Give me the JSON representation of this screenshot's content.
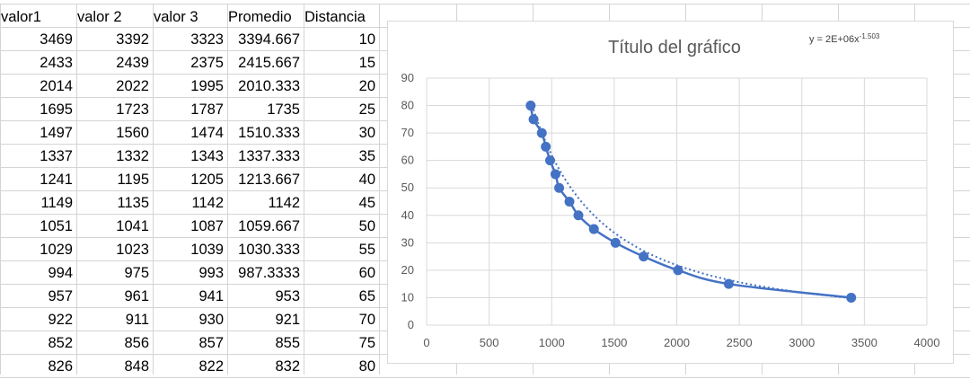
{
  "sheet": {
    "headers": [
      "valor1",
      "valor 2",
      "valor 3",
      "Promedio",
      "Distancia"
    ],
    "rows": [
      [
        "3469",
        "3392",
        "3323",
        "3394.667",
        "10"
      ],
      [
        "2433",
        "2439",
        "2375",
        "2415.667",
        "15"
      ],
      [
        "2014",
        "2022",
        "1995",
        "2010.333",
        "20"
      ],
      [
        "1695",
        "1723",
        "1787",
        "1735",
        "25"
      ],
      [
        "1497",
        "1560",
        "1474",
        "1510.333",
        "30"
      ],
      [
        "1337",
        "1332",
        "1343",
        "1337.333",
        "35"
      ],
      [
        "1241",
        "1195",
        "1205",
        "1213.667",
        "40"
      ],
      [
        "1149",
        "1135",
        "1142",
        "1142",
        "45"
      ],
      [
        "1051",
        "1041",
        "1087",
        "1059.667",
        "50"
      ],
      [
        "1029",
        "1023",
        "1039",
        "1030.333",
        "55"
      ],
      [
        "994",
        "975",
        "993",
        "987.3333",
        "60"
      ],
      [
        "957",
        "961",
        "941",
        "953",
        "65"
      ],
      [
        "922",
        "911",
        "930",
        "921",
        "70"
      ],
      [
        "852",
        "856",
        "857",
        "855",
        "75"
      ],
      [
        "826",
        "848",
        "822",
        "832",
        "80"
      ]
    ]
  },
  "chart_data": {
    "type": "scatter",
    "title": "Título del gráfico",
    "trendline_equation_base": "y = 2E+06x",
    "trendline_equation_exponent": "-1.503",
    "x": [
      3394.667,
      2415.667,
      2010.333,
      1735,
      1510.333,
      1337.333,
      1213.667,
      1142,
      1059.667,
      1030.333,
      987.3333,
      953,
      921,
      855,
      832
    ],
    "y": [
      10,
      15,
      20,
      25,
      30,
      35,
      40,
      45,
      50,
      55,
      60,
      65,
      70,
      75,
      80
    ],
    "trendline": {
      "type": "power",
      "coefficient": 2000000,
      "exponent": -1.503
    },
    "xlim": [
      0,
      4000
    ],
    "ylim": [
      0,
      90
    ],
    "xticks": [
      0,
      500,
      1000,
      1500,
      2000,
      2500,
      3000,
      3500,
      4000
    ],
    "yticks": [
      0,
      10,
      20,
      30,
      40,
      50,
      60,
      70,
      80,
      90
    ],
    "grid": true,
    "series_color": "#4472c4",
    "legend": "none"
  }
}
